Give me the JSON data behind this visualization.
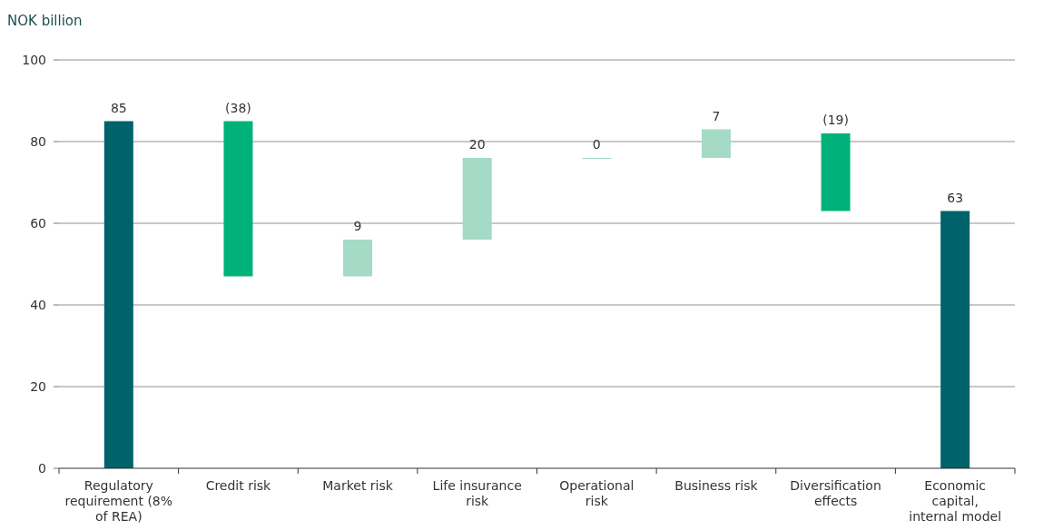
{
  "chart_data": {
    "type": "bar",
    "ylabel": "NOK billion",
    "categories": [
      "Regulatory requirement (8% of REA)",
      "Credit risk",
      "Market risk",
      "Life insurance risk",
      "Operational risk",
      "Business risk",
      "Diversification effects",
      "Economic capital, internal model"
    ],
    "values": [
      85,
      -38,
      9,
      20,
      0,
      7,
      -19,
      63
    ],
    "base": [
      0,
      85,
      47,
      56,
      76,
      76,
      82,
      0
    ],
    "colors": [
      "#00626a",
      "#00b27a",
      "#a4dac6",
      "#a4dac6",
      "#a4dac6",
      "#a4dac6",
      "#00b27a",
      "#00626a"
    ],
    "value_labels": [
      "85",
      "(38)",
      "9",
      "20",
      "0",
      "7",
      "(19)",
      "63"
    ],
    "ylim": [
      0,
      100
    ],
    "yticks": [
      0,
      20,
      40,
      60,
      80,
      100
    ],
    "grid": "y"
  }
}
